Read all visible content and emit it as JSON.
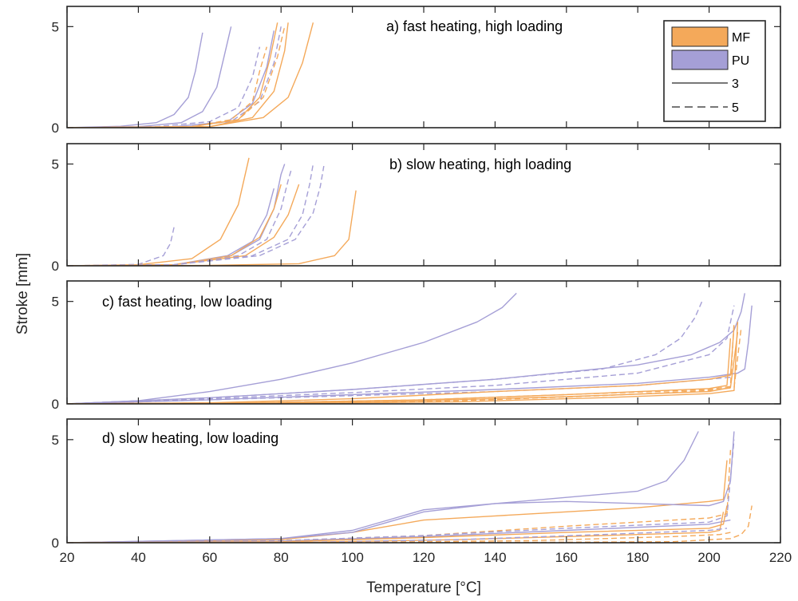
{
  "chart_data": {
    "type": "line",
    "xlabel": "Temperature [°C]",
    "ylabel": "Stroke [mm]",
    "xlim": [
      20,
      220
    ],
    "x_ticks": [
      20,
      40,
      60,
      80,
      100,
      120,
      140,
      160,
      180,
      200,
      220
    ],
    "ylim": [
      0,
      6
    ],
    "y_ticks": [
      0,
      5
    ],
    "grid": false,
    "legend_position": "top-right",
    "legend": [
      {
        "label": "MF",
        "kind": "patch",
        "color": "#f4a95a"
      },
      {
        "label": "PU",
        "kind": "patch",
        "color": "#a59fd6"
      },
      {
        "label": "3",
        "kind": "line",
        "dash": "solid"
      },
      {
        "label": "5",
        "kind": "line",
        "dash": "dashed"
      }
    ],
    "colors": {
      "MF": "#f4a95a",
      "PU": "#a59fd6"
    },
    "panels": [
      {
        "title": "a) fast heating, high loading",
        "series": [
          {
            "group": "PU",
            "style": "3",
            "x": [
              20,
              35,
              45,
              50,
              54,
              56,
              58
            ],
            "y": [
              0,
              0.07,
              0.25,
              0.65,
              1.5,
              2.8,
              4.7
            ]
          },
          {
            "group": "PU",
            "style": "3",
            "x": [
              20,
              40,
              52,
              58,
              62,
              64,
              66
            ],
            "y": [
              0,
              0.05,
              0.25,
              0.8,
              2.0,
              3.5,
              5.0
            ]
          },
          {
            "group": "PU",
            "style": "5",
            "x": [
              20,
              45,
              60,
              68,
              72,
              74
            ],
            "y": [
              0,
              0.05,
              0.3,
              1.0,
              2.5,
              4.0
            ]
          },
          {
            "group": "PU",
            "style": "3",
            "x": [
              20,
              50,
              65,
              72,
              76,
              78
            ],
            "y": [
              0,
              0.05,
              0.3,
              1.2,
              3.0,
              4.8
            ]
          },
          {
            "group": "PU",
            "style": "5",
            "x": [
              20,
              50,
              66,
              74,
              78,
              80
            ],
            "y": [
              0,
              0.05,
              0.3,
              1.3,
              3.2,
              5.0
            ]
          },
          {
            "group": "MF",
            "style": "5",
            "x": [
              20,
              55,
              66,
              72,
              74,
              76
            ],
            "y": [
              0,
              0.05,
              0.4,
              1.3,
              2.8,
              4.0
            ]
          },
          {
            "group": "MF",
            "style": "3",
            "x": [
              20,
              55,
              68,
              74,
              77,
              79
            ],
            "y": [
              0,
              0.05,
              0.4,
              1.5,
              3.5,
              5.2
            ]
          },
          {
            "group": "MF",
            "style": "5",
            "x": [
              20,
              55,
              68,
              75,
              79,
              81
            ],
            "y": [
              0,
              0.05,
              0.4,
              1.5,
              3.5,
              5.0
            ]
          },
          {
            "group": "MF",
            "style": "3",
            "x": [
              20,
              60,
              72,
              78,
              81,
              82
            ],
            "y": [
              0,
              0.05,
              0.5,
              1.8,
              3.8,
              5.2
            ]
          },
          {
            "group": "MF",
            "style": "3",
            "x": [
              20,
              60,
              75,
              82,
              86,
              89
            ],
            "y": [
              0,
              0.05,
              0.5,
              1.5,
              3.2,
              5.2
            ]
          }
        ]
      },
      {
        "title": "b) slow heating, high loading",
        "series": [
          {
            "group": "PU",
            "style": "5",
            "x": [
              20,
              40,
              47,
              49,
              50
            ],
            "y": [
              0,
              0.07,
              0.5,
              1.1,
              1.9
            ]
          },
          {
            "group": "MF",
            "style": "3",
            "x": [
              20,
              40,
              55,
              63,
              68,
              71
            ],
            "y": [
              0,
              0.05,
              0.35,
              1.3,
              3.0,
              5.3
            ]
          },
          {
            "group": "PU",
            "style": "3",
            "x": [
              20,
              50,
              65,
              72,
              76,
              78
            ],
            "y": [
              0,
              0.05,
              0.5,
              1.2,
              2.5,
              3.8
            ]
          },
          {
            "group": "PU",
            "style": "3",
            "x": [
              20,
              50,
              66,
              74,
              78,
              80,
              81
            ],
            "y": [
              0,
              0.05,
              0.5,
              1.3,
              2.8,
              4.5,
              5.0
            ]
          },
          {
            "group": "MF",
            "style": "3",
            "x": [
              20,
              50,
              66,
              74,
              78,
              80
            ],
            "y": [
              0,
              0.05,
              0.5,
              1.4,
              2.8,
              4.0
            ]
          },
          {
            "group": "PU",
            "style": "5",
            "x": [
              20,
              50,
              68,
              76,
              80,
              82,
              83
            ],
            "y": [
              0,
              0.05,
              0.5,
              1.3,
              2.8,
              4.2,
              4.8
            ]
          },
          {
            "group": "MF",
            "style": "3",
            "x": [
              20,
              50,
              70,
              78,
              82,
              84,
              85
            ],
            "y": [
              0,
              0.05,
              0.5,
              1.4,
              2.5,
              3.5,
              4.0
            ]
          },
          {
            "group": "PU",
            "style": "5",
            "x": [
              20,
              50,
              72,
              82,
              86,
              88,
              89
            ],
            "y": [
              0,
              0.05,
              0.5,
              1.3,
              2.5,
              4.0,
              5.0
            ]
          },
          {
            "group": "PU",
            "style": "5",
            "x": [
              20,
              50,
              74,
              84,
              89,
              91,
              92
            ],
            "y": [
              0,
              0.05,
              0.5,
              1.3,
              2.6,
              3.9,
              4.9
            ]
          },
          {
            "group": "MF",
            "style": "3",
            "x": [
              20,
              60,
              85,
              95,
              99,
              100,
              101
            ],
            "y": [
              0,
              0.02,
              0.1,
              0.5,
              1.3,
              2.5,
              3.7
            ]
          }
        ]
      },
      {
        "title": "c) fast heating, low loading",
        "series": [
          {
            "group": "PU",
            "style": "3",
            "x": [
              20,
              40,
              60,
              80,
              100,
              120,
              135,
              142,
              146
            ],
            "y": [
              0,
              0.15,
              0.6,
              1.2,
              2.0,
              3.0,
              4.0,
              4.7,
              5.4
            ]
          },
          {
            "group": "PU",
            "style": "5",
            "x": [
              20,
              60,
              100,
              140,
              170,
              185,
              192,
              196,
              198
            ],
            "y": [
              0,
              0.3,
              0.7,
              1.2,
              1.7,
              2.4,
              3.2,
              4.2,
              5.0
            ]
          },
          {
            "group": "PU",
            "style": "3",
            "x": [
              20,
              60,
              100,
              140,
              180,
              195,
              203,
              207,
              209,
              210
            ],
            "y": [
              0,
              0.3,
              0.7,
              1.2,
              1.9,
              2.4,
              3.0,
              3.6,
              4.5,
              5.4
            ]
          },
          {
            "group": "PU",
            "style": "5",
            "x": [
              20,
              60,
              100,
              140,
              180,
              200,
              205,
              207
            ],
            "y": [
              0,
              0.25,
              0.55,
              0.9,
              1.5,
              2.4,
              3.2,
              4.8
            ]
          },
          {
            "group": "PU",
            "style": "3",
            "x": [
              20,
              60,
              100,
              140,
              180,
              200,
              208,
              210,
              211,
              212
            ],
            "y": [
              0,
              0.2,
              0.45,
              0.7,
              1.0,
              1.3,
              1.5,
              1.7,
              3.0,
              4.8
            ]
          },
          {
            "group": "PU",
            "style": "5",
            "x": [
              20,
              60,
              100,
              140,
              180,
              200,
              206
            ],
            "y": [
              0,
              0.2,
              0.4,
              0.6,
              0.9,
              1.2,
              1.3
            ]
          },
          {
            "group": "MF",
            "style": "3",
            "x": [
              20,
              60,
              100,
              140,
              180,
              200,
              206,
              207
            ],
            "y": [
              0,
              0.05,
              0.25,
              0.6,
              0.9,
              1.2,
              1.4,
              3.8
            ]
          },
          {
            "group": "MF",
            "style": "3",
            "x": [
              20,
              70,
              120,
              160,
              200,
              205,
              206
            ],
            "y": [
              0,
              0.05,
              0.2,
              0.45,
              0.75,
              0.9,
              3.2
            ]
          },
          {
            "group": "MF",
            "style": "5",
            "x": [
              20,
              70,
              120,
              160,
              200,
              206,
              207
            ],
            "y": [
              0,
              0.05,
              0.2,
              0.45,
              0.7,
              0.85,
              4.0
            ]
          },
          {
            "group": "MF",
            "style": "3",
            "x": [
              20,
              80,
              120,
              160,
              200,
              206,
              208
            ],
            "y": [
              0,
              0.05,
              0.15,
              0.35,
              0.6,
              0.8,
              3.5
            ]
          },
          {
            "group": "MF",
            "style": "3",
            "x": [
              20,
              90,
              130,
              170,
              200,
              207,
              208
            ],
            "y": [
              0,
              0.03,
              0.1,
              0.3,
              0.5,
              0.65,
              4.0
            ]
          },
          {
            "group": "MF",
            "style": "5",
            "x": [
              20,
              80,
              130,
              170,
              200,
              207,
              209
            ],
            "y": [
              0,
              0.05,
              0.15,
              0.4,
              0.65,
              0.8,
              3.7
            ]
          }
        ]
      },
      {
        "title": "d) slow heating, low loading",
        "series": [
          {
            "group": "PU",
            "style": "3",
            "x": [
              20,
              80,
              100,
              120,
              140,
              160,
              180,
              188,
              193,
              197
            ],
            "y": [
              0,
              0.2,
              0.6,
              1.6,
              1.9,
              2.2,
              2.5,
              3.0,
              4.0,
              5.4
            ]
          },
          {
            "group": "MF",
            "style": "3",
            "x": [
              20,
              80,
              100,
              120,
              140,
              160,
              180,
              200,
              204,
              205
            ],
            "y": [
              0,
              0.15,
              0.5,
              1.1,
              1.3,
              1.5,
              1.7,
              2.0,
              2.1,
              4.0
            ]
          },
          {
            "group": "PU",
            "style": "3",
            "x": [
              20,
              80,
              100,
              120,
              140,
              160,
              180,
              200,
              204,
              206,
              207
            ],
            "y": [
              0,
              0.2,
              0.5,
              1.5,
              1.9,
              2.0,
              1.9,
              1.8,
              2.0,
              3.0,
              5.4
            ]
          },
          {
            "group": "MF",
            "style": "5",
            "x": [
              20,
              80,
              120,
              160,
              200,
              205,
              206
            ],
            "y": [
              0,
              0.1,
              0.35,
              0.8,
              1.2,
              1.4,
              4.5
            ]
          },
          {
            "group": "PU",
            "style": "5",
            "x": [
              20,
              80,
              120,
              160,
              200,
              205,
              207
            ],
            "y": [
              0,
              0.1,
              0.35,
              0.7,
              1.0,
              1.3,
              5.0
            ]
          },
          {
            "group": "PU",
            "style": "3",
            "x": [
              20,
              80,
              120,
              160,
              200,
              206
            ],
            "y": [
              0,
              0.08,
              0.3,
              0.6,
              0.9,
              1.1
            ]
          },
          {
            "group": "MF",
            "style": "3",
            "x": [
              20,
              80,
              120,
              160,
              200,
              204,
              205
            ],
            "y": [
              0,
              0.05,
              0.25,
              0.5,
              0.7,
              0.9,
              1.8
            ]
          },
          {
            "group": "MF",
            "style": "3",
            "x": [
              20,
              90,
              130,
              170,
              200,
              203,
              204
            ],
            "y": [
              0,
              0.03,
              0.15,
              0.35,
              0.5,
              0.6,
              1.5
            ]
          },
          {
            "group": "PU",
            "style": "5",
            "x": [
              20,
              90,
              130,
              170,
              200,
              205
            ],
            "y": [
              0,
              0.03,
              0.15,
              0.4,
              0.6,
              0.7
            ]
          },
          {
            "group": "MF",
            "style": "5",
            "x": [
              20,
              100,
              150,
              190,
              203,
              206
            ],
            "y": [
              0,
              0.02,
              0.1,
              0.3,
              0.4,
              0.5
            ]
          },
          {
            "group": "MF",
            "style": "5",
            "x": [
              20,
              150,
              190,
              206,
              209,
              211,
              212
            ],
            "y": [
              0,
              0.02,
              0.05,
              0.2,
              0.4,
              0.8,
              1.8
            ]
          }
        ]
      }
    ]
  }
}
